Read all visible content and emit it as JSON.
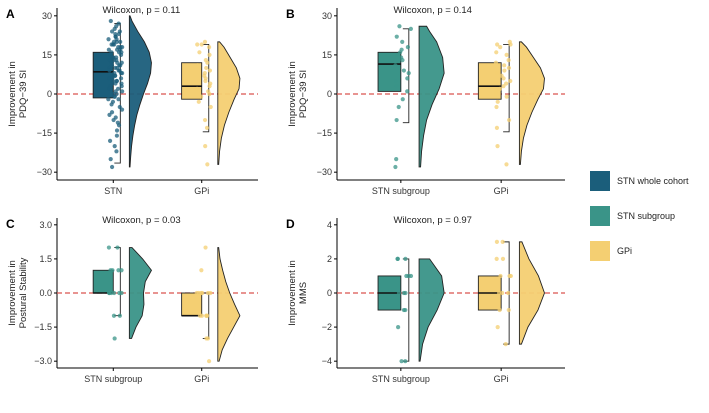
{
  "colors": {
    "stn_whole": "#1b5e7b",
    "stn_sub": "#3a9488",
    "gpi": "#f4cf72",
    "ref_line": "#d9534f",
    "axis": "#000000"
  },
  "legend": {
    "items": [
      {
        "label": "STN whole cohort",
        "color_key": "stn_whole"
      },
      {
        "label": "STN subgroup",
        "color_key": "stn_sub"
      },
      {
        "label": "GPi",
        "color_key": "gpi"
      }
    ]
  },
  "chart_data": [
    {
      "type": "raincloud",
      "panel": "A",
      "title": "Wilcoxon, p = 0.11",
      "ylabel": [
        "Improvement in",
        "PDQ−39 SI"
      ],
      "ylim": [
        -33,
        33
      ],
      "yticks": [
        -30,
        -15,
        0,
        15,
        30
      ],
      "ytick_labels": [
        "−30",
        "−15",
        "0",
        "15",
        "30"
      ],
      "reference_y": 0,
      "groups": [
        {
          "label": "STN",
          "color_key": "stn_whole",
          "box": {
            "q1": -1.5,
            "median": 8.5,
            "q3": 16,
            "whisker_low": -26.5,
            "whisker_high": 27
          },
          "points": [
            28,
            27,
            26,
            25,
            24,
            24,
            23,
            23,
            22,
            22,
            21,
            21,
            20,
            20,
            20,
            19,
            19,
            19,
            18,
            18,
            18,
            17,
            17,
            17,
            16,
            16,
            16,
            15,
            15,
            15,
            14,
            14,
            14,
            13,
            13,
            13,
            12,
            12,
            12,
            11,
            11,
            11,
            10,
            10,
            10,
            9,
            9,
            9,
            8,
            8,
            8,
            7,
            7,
            7,
            6,
            6,
            6,
            5,
            5,
            5,
            4,
            4,
            4,
            3,
            3,
            2,
            2,
            1,
            1,
            0,
            0,
            -1,
            -1,
            -2,
            -2,
            -3,
            -4,
            -5,
            -6,
            -7,
            -8,
            -9,
            -10,
            -11,
            -12,
            -14,
            -16,
            -18,
            -20,
            -22,
            -25,
            -28
          ],
          "violin": [
            [
              -28,
              0.03
            ],
            [
              -24,
              0.06
            ],
            [
              -20,
              0.1
            ],
            [
              -16,
              0.16
            ],
            [
              -12,
              0.24
            ],
            [
              -8,
              0.34
            ],
            [
              -4,
              0.48
            ],
            [
              0,
              0.64
            ],
            [
              4,
              0.82
            ],
            [
              8,
              0.96
            ],
            [
              12,
              1.0
            ],
            [
              16,
              0.9
            ],
            [
              20,
              0.68
            ],
            [
              24,
              0.38
            ],
            [
              28,
              0.12
            ],
            [
              30,
              0.03
            ]
          ]
        },
        {
          "label": "GPi",
          "color_key": "gpi",
          "box": {
            "q1": -2,
            "median": 3,
            "q3": 12,
            "whisker_low": -14.5,
            "whisker_high": 19
          },
          "points": [
            20,
            19,
            19,
            18,
            16,
            15,
            13,
            12,
            11,
            10,
            9,
            8,
            7,
            6,
            5,
            4,
            3,
            2,
            1,
            0,
            -1,
            -3,
            -5,
            -10,
            -13,
            -20,
            -27
          ],
          "violin": [
            [
              -27,
              0.04
            ],
            [
              -22,
              0.08
            ],
            [
              -17,
              0.16
            ],
            [
              -12,
              0.3
            ],
            [
              -7,
              0.5
            ],
            [
              -2,
              0.74
            ],
            [
              2,
              0.96
            ],
            [
              6,
              1.0
            ],
            [
              10,
              0.84
            ],
            [
              14,
              0.56
            ],
            [
              18,
              0.28
            ],
            [
              20,
              0.08
            ]
          ]
        }
      ],
      "x_tick_labels": [
        "STN",
        "GPi"
      ]
    },
    {
      "type": "raincloud",
      "panel": "B",
      "title": "Wilcoxon, p = 0.14",
      "ylabel": [
        "Improvement in",
        "PDQ−39 SI"
      ],
      "ylim": [
        -33,
        33
      ],
      "yticks": [
        -30,
        -15,
        0,
        15,
        30
      ],
      "ytick_labels": [
        "−30",
        "−15",
        "0",
        "15",
        "30"
      ],
      "reference_y": 0,
      "groups": [
        {
          "label": "STN subgroup",
          "color_key": "stn_sub",
          "box": {
            "q1": 1,
            "median": 11.5,
            "q3": 16,
            "whisker_low": -11,
            "whisker_high": 25
          },
          "points": [
            26,
            25,
            22,
            20,
            18,
            17,
            16,
            15,
            14,
            13,
            11,
            10,
            9,
            8,
            6,
            5,
            3,
            1,
            -2,
            -5,
            -10,
            -25,
            -28
          ],
          "violin": [
            [
              -28,
              0.06
            ],
            [
              -22,
              0.1
            ],
            [
              -16,
              0.18
            ],
            [
              -10,
              0.3
            ],
            [
              -4,
              0.52
            ],
            [
              2,
              0.8
            ],
            [
              8,
              1.0
            ],
            [
              14,
              0.94
            ],
            [
              20,
              0.7
            ],
            [
              24,
              0.42
            ],
            [
              26,
              0.3
            ]
          ]
        },
        {
          "label": "GPi",
          "color_key": "gpi",
          "box": {
            "q1": -2,
            "median": 3,
            "q3": 12,
            "whisker_low": -14.5,
            "whisker_high": 19
          },
          "points": [
            20,
            19,
            19,
            18,
            16,
            15,
            13,
            12,
            11,
            10,
            9,
            8,
            7,
            6,
            5,
            4,
            3,
            2,
            1,
            0,
            -1,
            -3,
            -5,
            -10,
            -13,
            -20,
            -27
          ],
          "violin": [
            [
              -27,
              0.04
            ],
            [
              -22,
              0.08
            ],
            [
              -17,
              0.16
            ],
            [
              -12,
              0.3
            ],
            [
              -7,
              0.5
            ],
            [
              -2,
              0.74
            ],
            [
              2,
              0.96
            ],
            [
              6,
              1.0
            ],
            [
              10,
              0.84
            ],
            [
              14,
              0.56
            ],
            [
              18,
              0.28
            ],
            [
              20,
              0.08
            ]
          ]
        }
      ],
      "x_tick_labels": [
        "STN subgroup",
        "GPi"
      ]
    },
    {
      "type": "raincloud",
      "panel": "C",
      "title": "Wilcoxon, p = 0.03",
      "ylabel": [
        "Improvement in",
        "Postural Stability"
      ],
      "ylim": [
        -3.3,
        3.3
      ],
      "yticks": [
        -3,
        -1.5,
        0,
        1.5,
        3
      ],
      "ytick_labels": [
        "−3.0",
        "−1.5",
        "0.0",
        "1.5",
        "3.0"
      ],
      "reference_y": 0,
      "groups": [
        {
          "label": "STN subgroup",
          "color_key": "stn_sub",
          "box": {
            "q1": 0,
            "median": 0,
            "q3": 1,
            "whisker_low": -1,
            "whisker_high": 2
          },
          "points": [
            2,
            2,
            1,
            1,
            1,
            1,
            0,
            0,
            0,
            0,
            0,
            0,
            -1,
            -1,
            -2
          ],
          "violin": [
            [
              -2,
              0.1
            ],
            [
              -1.5,
              0.3
            ],
            [
              -1,
              0.58
            ],
            [
              -0.5,
              0.66
            ],
            [
              0,
              0.64
            ],
            [
              0.5,
              0.72
            ],
            [
              1,
              1.0
            ],
            [
              1.5,
              0.6
            ],
            [
              2,
              0.12
            ]
          ]
        },
        {
          "label": "GPi",
          "color_key": "gpi",
          "box": {
            "q1": -1,
            "median": -1,
            "q3": 0,
            "whisker_low": -2,
            "whisker_high": 0
          },
          "points": [
            2,
            1,
            0,
            0,
            0,
            0,
            0,
            0,
            -1,
            -1,
            -1,
            -1,
            -1,
            -2,
            -2,
            -3
          ],
          "violin": [
            [
              -3,
              0.06
            ],
            [
              -2.5,
              0.2
            ],
            [
              -2,
              0.44
            ],
            [
              -1.5,
              0.72
            ],
            [
              -1,
              1.0
            ],
            [
              -0.5,
              0.76
            ],
            [
              0,
              0.54
            ],
            [
              0.5,
              0.36
            ],
            [
              1,
              0.22
            ],
            [
              1.5,
              0.1
            ],
            [
              2,
              0.04
            ]
          ]
        }
      ],
      "x_tick_labels": [
        "STN subgroup",
        "GPi"
      ]
    },
    {
      "type": "raincloud",
      "panel": "D",
      "title": "Wilcoxon, p = 0.97",
      "ylabel": [
        "Improvement in",
        "MMS"
      ],
      "ylim": [
        -4.4,
        4.4
      ],
      "yticks": [
        -4,
        -2,
        0,
        2,
        4
      ],
      "ytick_labels": [
        "−4",
        "−2",
        "0",
        "2",
        "4"
      ],
      "reference_y": 0,
      "groups": [
        {
          "label": "STN subgroup",
          "color_key": "stn_sub",
          "box": {
            "q1": -1,
            "median": 0,
            "q3": 1,
            "whisker_low": -4,
            "whisker_high": 2
          },
          "points": [
            2,
            2,
            2,
            1,
            1,
            1,
            0,
            0,
            0,
            -1,
            -1,
            -2,
            -4,
            -4
          ],
          "violin": [
            [
              -4,
              0.04
            ],
            [
              -3,
              0.14
            ],
            [
              -2,
              0.36
            ],
            [
              -1,
              0.72
            ],
            [
              0,
              1.0
            ],
            [
              1,
              0.9
            ],
            [
              2,
              0.42
            ]
          ]
        },
        {
          "label": "GPi",
          "color_key": "gpi",
          "box": {
            "q1": -1,
            "median": 0,
            "q3": 1,
            "whisker_low": -3,
            "whisker_high": 3
          },
          "points": [
            3,
            3,
            2,
            2,
            1,
            1,
            1,
            0,
            0,
            0,
            -1,
            -1,
            -2,
            -3
          ],
          "violin": [
            [
              -3,
              0.08
            ],
            [
              -2,
              0.34
            ],
            [
              -1,
              0.74
            ],
            [
              0,
              1.0
            ],
            [
              1,
              0.76
            ],
            [
              2,
              0.38
            ],
            [
              3,
              0.1
            ]
          ]
        }
      ],
      "x_tick_labels": [
        "STN subgroup",
        "GPi"
      ]
    }
  ]
}
